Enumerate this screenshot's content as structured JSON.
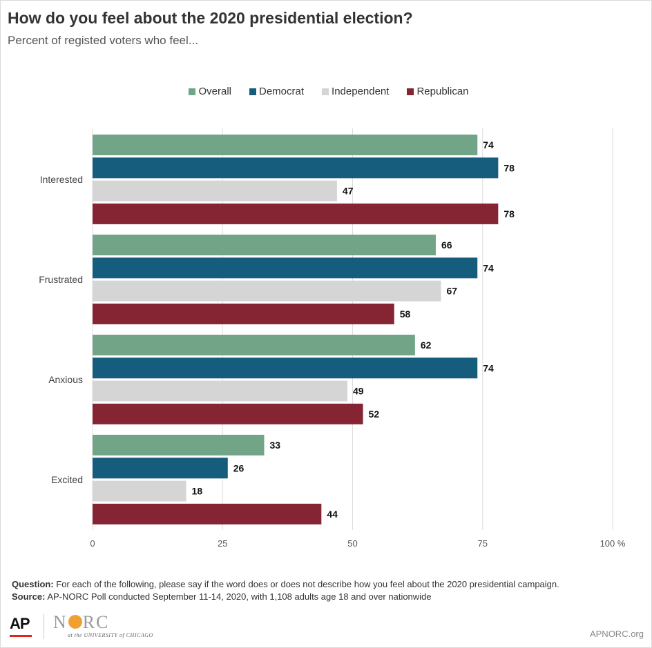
{
  "header": {
    "title": "How do you feel about the 2020 presidential election?",
    "subtitle": "Percent of registed voters who feel..."
  },
  "footer": {
    "question_label": "Question:",
    "question_text": "For each of the following, please say if the word does or does not describe how you feel about the 2020 presidential campaign.",
    "source_label": "Source:",
    "source_text": "AP-NORC Poll conducted September 11-14, 2020, with 1,108 adults age 18 and over nationwide",
    "site": "APNORC.org"
  },
  "logos": {
    "ap": "AP",
    "norc_n": "N",
    "norc_rc": "RC",
    "norc_sub": "at the UNIVERSITY of CHICAGO"
  },
  "chart_data": {
    "type": "bar",
    "orientation": "horizontal",
    "categories": [
      "Interested",
      "Frustrated",
      "Anxious",
      "Excited"
    ],
    "series": [
      {
        "name": "Overall",
        "color": "#72a588",
        "values": [
          74,
          66,
          62,
          33
        ]
      },
      {
        "name": "Democrat",
        "color": "#165c7d",
        "values": [
          78,
          74,
          74,
          26
        ]
      },
      {
        "name": "Independent",
        "color": "#d5d5d5",
        "values": [
          47,
          67,
          49,
          18
        ]
      },
      {
        "name": "Republican",
        "color": "#852432",
        "values": [
          78,
          58,
          52,
          44
        ]
      }
    ],
    "xlim": [
      0,
      100
    ],
    "ticks": [
      {
        "value": 0,
        "label": "0"
      },
      {
        "value": 25,
        "label": "25"
      },
      {
        "value": 50,
        "label": "50"
      },
      {
        "value": 75,
        "label": "75"
      },
      {
        "value": 100,
        "label": "100 %"
      }
    ],
    "grid": true,
    "legend_position": "top-center",
    "data_labels": true
  }
}
